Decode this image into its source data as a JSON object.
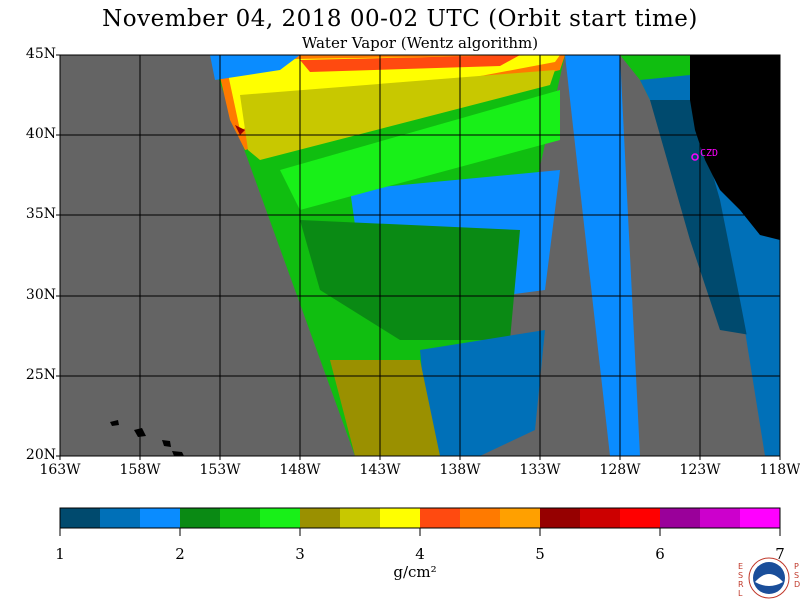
{
  "title": "November 04, 2018  00-02 UTC  (Orbit start time)",
  "subtitle": "Water Vapor (Wentz algorithm)",
  "lat_labels": [
    "45N",
    "40N",
    "35N",
    "30N",
    "25N",
    "20N"
  ],
  "lon_labels": [
    "163W",
    "158W",
    "153W",
    "148W",
    "143W",
    "138W",
    "133W",
    "128W",
    "123W",
    "118W"
  ],
  "colorbar": {
    "ticks": [
      "1",
      "2",
      "3",
      "4",
      "5",
      "6",
      "7"
    ],
    "units": "g/cm²",
    "colors": [
      "#004a6e",
      "#0070b8",
      "#0a8cff",
      "#0a8a14",
      "#10be10",
      "#18f018",
      "#9a9000",
      "#c8c800",
      "#ffff00",
      "#ff4a10",
      "#ff7a00",
      "#ffa000",
      "#960000",
      "#cc0000",
      "#ff0000",
      "#9a009a",
      "#cc00cc",
      "#ff00ff"
    ]
  },
  "map": {
    "nodata_color": "#646464",
    "land_color": "#000000",
    "station_label": "CZD",
    "station_color": "#ff00ff"
  },
  "logo": {
    "left_text": "ESRL",
    "right_text": "PSD",
    "name": "NOAA"
  }
}
